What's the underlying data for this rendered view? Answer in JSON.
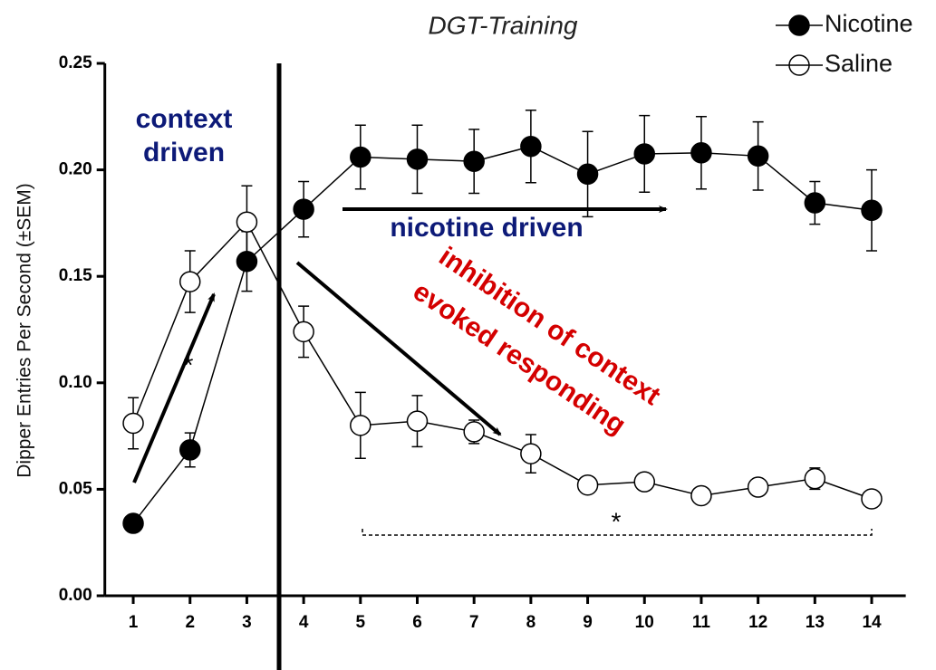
{
  "chart_data": {
    "type": "line",
    "title": "DGT-Training",
    "y_label": "Dipper Entries Per Second (±SEM)",
    "x": [
      1,
      2,
      3,
      4,
      5,
      6,
      7,
      8,
      9,
      10,
      11,
      12,
      13,
      14
    ],
    "xlim": [
      0.5,
      14.6
    ],
    "xticks": [
      1,
      2,
      3,
      4,
      5,
      6,
      7,
      8,
      9,
      10,
      11,
      12,
      13,
      14
    ],
    "ylim": [
      0,
      0.25
    ],
    "yticks": [
      {
        "value": 0,
        "label": "0.00"
      },
      0.05,
      {
        "value": 0.1,
        "label": "0.10"
      },
      0.15,
      {
        "value": 0.2,
        "label": "0.20"
      },
      0.25
    ],
    "legend": "top-right",
    "series": [
      {
        "name": "Nicotine",
        "color": "#000000",
        "marker_fill": "#000000",
        "values": [
          0.034,
          0.0685,
          0.157,
          0.1815,
          0.206,
          0.205,
          0.204,
          0.211,
          0.198,
          0.2075,
          0.208,
          0.2065,
          0.1845,
          0.181
        ],
        "errors": [
          0.003,
          0.008,
          0.014,
          0.013,
          0.015,
          0.016,
          0.015,
          0.017,
          0.02,
          0.018,
          0.017,
          0.016,
          0.01,
          0.019
        ]
      },
      {
        "name": "Saline",
        "color": "#000000",
        "marker_fill": "#ffffff",
        "values": [
          0.081,
          0.1475,
          0.1755,
          0.124,
          0.08,
          0.082,
          0.077,
          0.0667,
          0.052,
          0.0535,
          0.047,
          0.051,
          0.055,
          0.0455
        ],
        "errors": [
          0.012,
          0.0145,
          0.017,
          0.012,
          0.0155,
          0.012,
          0.0055,
          0.009,
          0.002,
          0.002,
          0.002,
          0.002,
          0.005,
          0.002
        ]
      }
    ],
    "annotations": [
      [
        "context",
        "driven"
      ],
      [
        "nicotine driven"
      ],
      [
        "inhibition of context",
        "evoked responding"
      ],
      [
        "*"
      ],
      [
        "*"
      ]
    ]
  }
}
